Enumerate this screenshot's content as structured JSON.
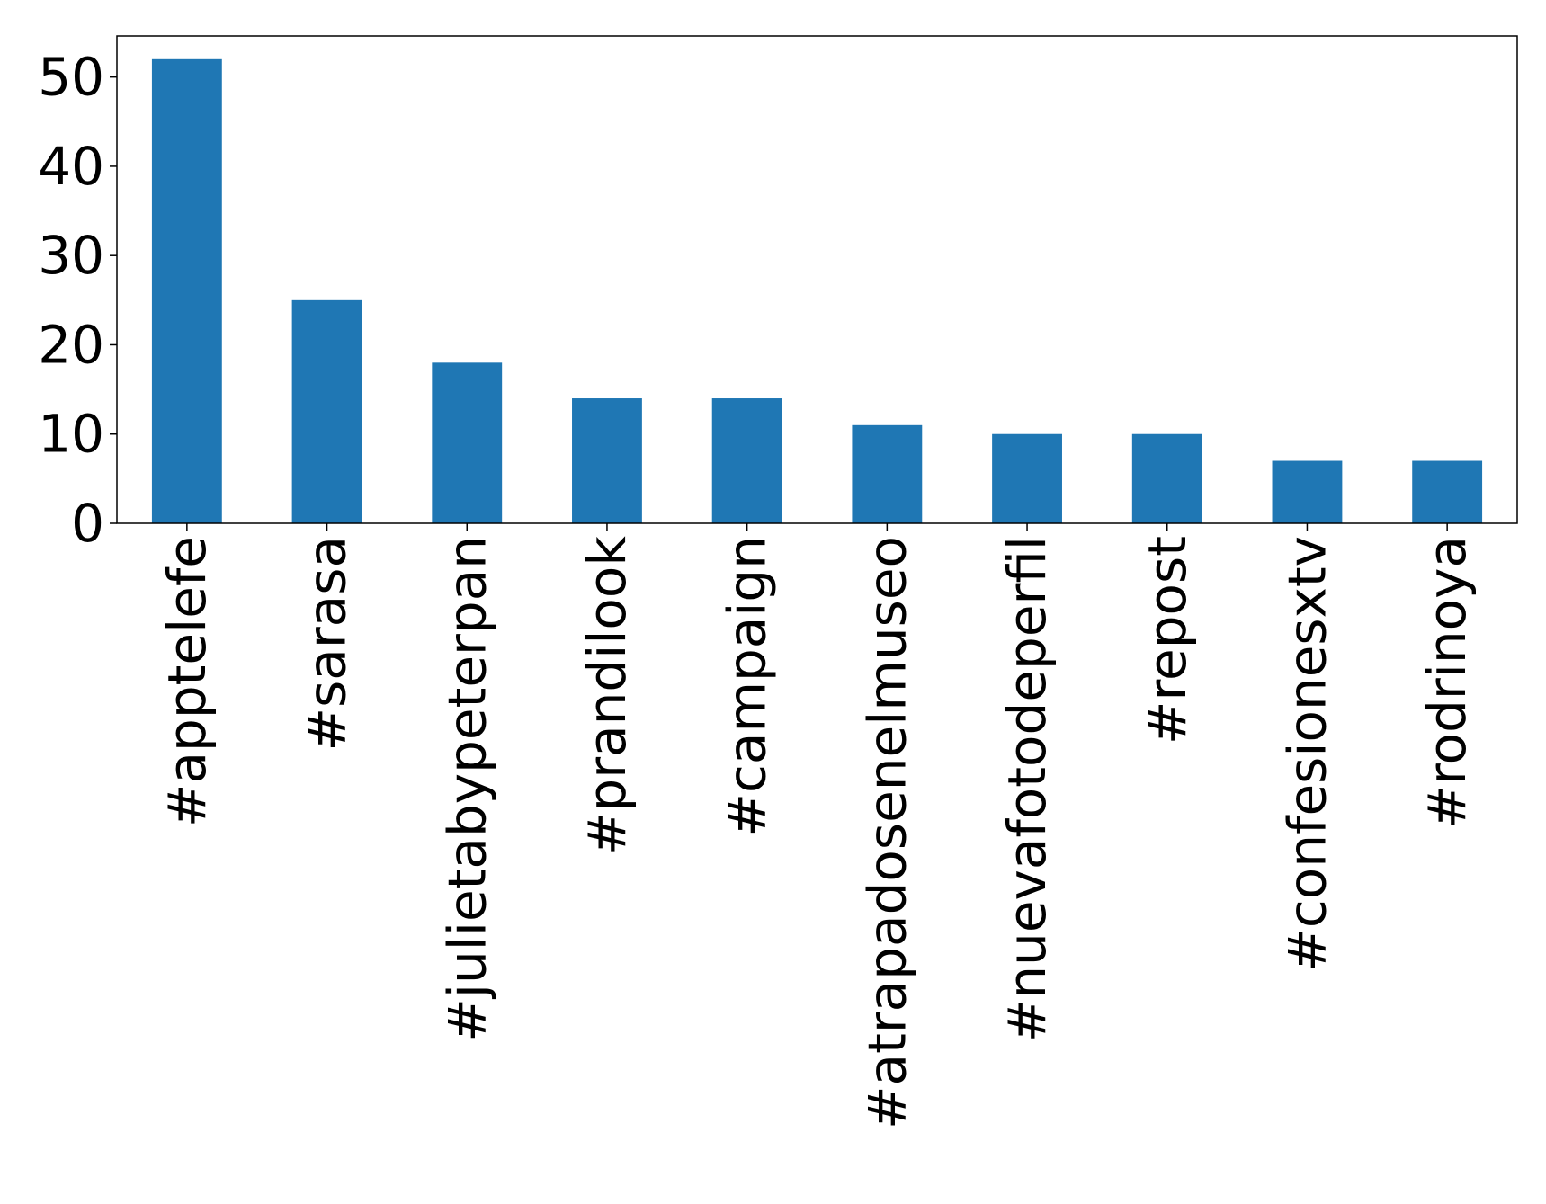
{
  "chart_data": {
    "type": "bar",
    "categories": [
      "#apptelefe",
      "#sarasa",
      "#julietabypeterpan",
      "#prandilook",
      "#campaign",
      "#atrapadosenelmuseo",
      "#nuevafotodeperfil",
      "#repost",
      "#confesionesxtv",
      "#rodrinoya"
    ],
    "values": [
      52,
      25,
      18,
      14,
      14,
      11,
      10,
      10,
      7,
      7
    ],
    "title": "",
    "xlabel": "",
    "ylabel": "",
    "ylim": [
      0,
      54.6
    ],
    "yticks": [
      "0",
      "10",
      "20",
      "30",
      "40",
      "50"
    ],
    "grid": false,
    "legend": "none",
    "bar_color": "#1f77b4"
  }
}
